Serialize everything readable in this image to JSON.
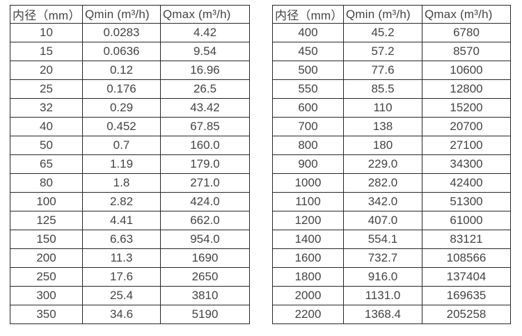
{
  "colors": {
    "background": "#ffffff",
    "border": "#262626",
    "text": "#434343"
  },
  "tables": [
    {
      "name": "flow-table-small-diameters",
      "headers": [
        "内径（mm）",
        "Qmin (m³/h)",
        "Qmax (m³/h)"
      ],
      "rows": [
        [
          "10",
          "0.0283",
          "4.42"
        ],
        [
          "15",
          "0.0636",
          "9.54"
        ],
        [
          "20",
          "0.12",
          "16.96"
        ],
        [
          "25",
          "0.176",
          "26.5"
        ],
        [
          "32",
          "0.29",
          "43.42"
        ],
        [
          "40",
          "0.452",
          "67.85"
        ],
        [
          "50",
          "0.7",
          "160.0"
        ],
        [
          "65",
          "1.19",
          "179.0"
        ],
        [
          "80",
          "1.8",
          "271.0"
        ],
        [
          "100",
          "2.82",
          "424.0"
        ],
        [
          "125",
          "4.41",
          "662.0"
        ],
        [
          "150",
          "6.63",
          "954.0"
        ],
        [
          "200",
          "11.3",
          "1690"
        ],
        [
          "250",
          "17.6",
          "2650"
        ],
        [
          "300",
          "25.4",
          "3810"
        ],
        [
          "350",
          "34.6",
          "5190"
        ]
      ]
    },
    {
      "name": "flow-table-large-diameters",
      "headers": [
        "内径（mm）",
        "Qmin (m³/h)",
        "Qmax (m³/h)"
      ],
      "rows": [
        [
          "400",
          "45.2",
          "6780"
        ],
        [
          "450",
          "57.2",
          "8570"
        ],
        [
          "500",
          "77.6",
          "10600"
        ],
        [
          "550",
          "85.5",
          "12800"
        ],
        [
          "600",
          "110",
          "15200"
        ],
        [
          "700",
          "138",
          "20700"
        ],
        [
          "800",
          "180",
          "27100"
        ],
        [
          "900",
          "229.0",
          "34300"
        ],
        [
          "1000",
          "282.0",
          "42400"
        ],
        [
          "1100",
          "342.0",
          "51300"
        ],
        [
          "1200",
          "407.0",
          "61000"
        ],
        [
          "1400",
          "554.1",
          "83121"
        ],
        [
          "1600",
          "732.7",
          "108566"
        ],
        [
          "1800",
          "916.0",
          "137404"
        ],
        [
          "2000",
          "1131.0",
          "169635"
        ],
        [
          "2200",
          "1368.4",
          "205258"
        ]
      ]
    }
  ]
}
